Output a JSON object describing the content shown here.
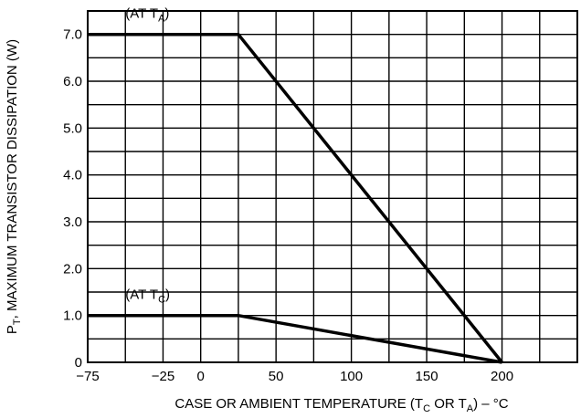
{
  "chart_data": {
    "type": "line",
    "ylabel": {
      "prefix": "P",
      "sub": "T",
      "rest": ", MAXIMUM TRANSISTOR DISSIPATION (W)"
    },
    "xlabel": {
      "parts": [
        {
          "t": "CASE OR AMBIENT TEMPERATURE (T",
          "sub": false
        },
        {
          "t": "C",
          "sub": true
        },
        {
          "t": " OR T",
          "sub": false
        },
        {
          "t": "A",
          "sub": true
        },
        {
          "t": ") – °C",
          "sub": false
        }
      ]
    },
    "xlim": [
      -75,
      250
    ],
    "ylim": [
      0,
      7.5
    ],
    "x_tick_labels": [
      {
        "v": -75,
        "label": "−75"
      },
      {
        "v": -25,
        "label": "−25"
      },
      {
        "v": 0,
        "label": "0"
      },
      {
        "v": 50,
        "label": "50"
      },
      {
        "v": 100,
        "label": "100"
      },
      {
        "v": 150,
        "label": "150"
      },
      {
        "v": 200,
        "label": "200"
      }
    ],
    "y_tick_labels": [
      {
        "v": 0,
        "label": "0"
      },
      {
        "v": 1,
        "label": "1.0"
      },
      {
        "v": 2,
        "label": "2.0"
      },
      {
        "v": 3,
        "label": "3.0"
      },
      {
        "v": 4,
        "label": "4.0"
      },
      {
        "v": 5,
        "label": "5.0"
      },
      {
        "v": 6,
        "label": "6.0"
      },
      {
        "v": 7,
        "label": "7.0"
      }
    ],
    "grid": true,
    "grid_x": [
      -50,
      -25,
      0,
      25,
      50,
      75,
      100,
      125,
      150,
      175,
      200,
      225
    ],
    "grid_y": [
      0.5,
      1,
      1.5,
      2,
      2.5,
      3,
      3.5,
      4,
      4.5,
      5,
      5.5,
      6,
      6.5,
      7
    ],
    "series": [
      {
        "points": [
          [
            -75,
            7.0
          ],
          [
            25,
            7.0
          ],
          [
            200,
            0
          ]
        ],
        "annotation": {
          "text": "(AT T",
          "sub": "A",
          "close": ")",
          "at": [
            -50,
            7.35
          ]
        }
      },
      {
        "points": [
          [
            -75,
            1.0
          ],
          [
            25,
            1.0
          ],
          [
            200,
            0
          ]
        ],
        "annotation": {
          "text": "(AT T",
          "sub": "C",
          "close": ")",
          "at": [
            -50,
            1.35
          ]
        }
      }
    ]
  }
}
